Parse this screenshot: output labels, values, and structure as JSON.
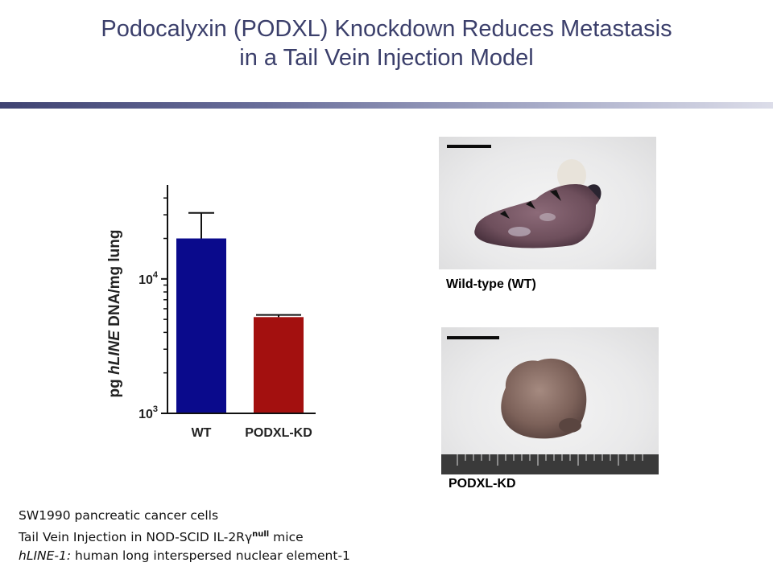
{
  "slide": {
    "title_line1": "Podocalyxin (PODXL) Knockdown Reduces Metastasis",
    "title_line2": "in a Tail Vein Injection Model",
    "colors": {
      "title": "#3b3f6b",
      "wt_bar": "#0a0a8c",
      "kd_bar": "#a3100f"
    }
  },
  "chart_data": {
    "type": "bar",
    "categories": [
      "WT",
      "PODXL-KD"
    ],
    "values": [
      20000,
      5200
    ],
    "error": [
      11000,
      200
    ],
    "ylabel_prefix": "pg ",
    "ylabel_italic": "hLINE",
    "ylabel_suffix": " DNA/mg lung",
    "yscale": "log",
    "ylim": [
      1000,
      50000
    ],
    "yticks": [
      {
        "value": 10000,
        "base": "10",
        "exp": "4"
      },
      {
        "value": 1000,
        "base": "10",
        "exp": "3"
      }
    ],
    "grid": false
  },
  "photos": {
    "wt_caption": "Wild-type (WT)",
    "kd_caption": "PODXL-KD"
  },
  "notes": {
    "line1": "SW1990 pancreatic cancer cells",
    "line2_pre": "Tail Vein Injection in NOD-SCID IL-2R",
    "line2_gamma": "γ",
    "line2_sup": "null",
    "line2_post": " mice",
    "line3_italic": "hLINE-1:",
    "line3_rest": " human long interspersed  nuclear element-1"
  }
}
